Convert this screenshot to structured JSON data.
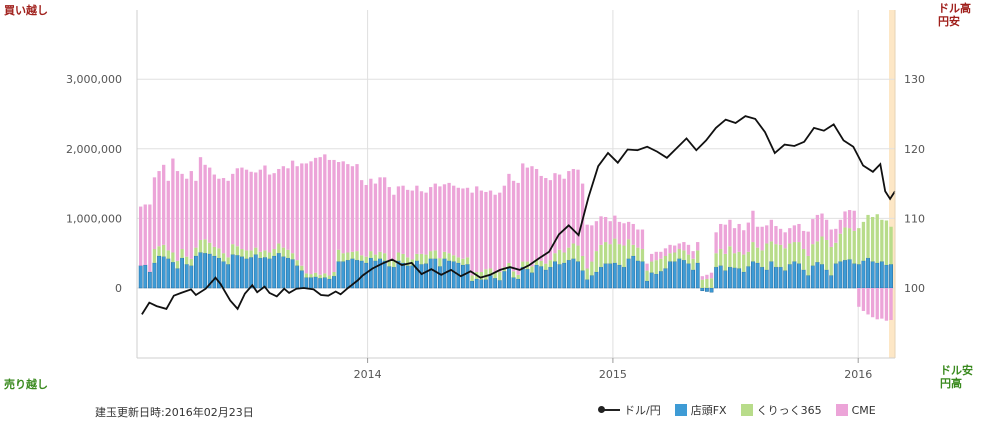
{
  "corner_labels": {
    "top_left": "買い越し",
    "bottom_left": "売り越し",
    "top_right_1": "ドル高",
    "top_right_2": "円安",
    "bottom_right_1": "ドル安",
    "bottom_right_2": "円高"
  },
  "footer": {
    "updated": "建玉更新日時:2016年02月23日"
  },
  "colors": {
    "fx": "#3e9bd5",
    "fx_edge": "#1f6aa0",
    "click365": "#b8dc8a",
    "cme": "#eca4d8",
    "line": "#111111",
    "grid": "#e0e0e0",
    "highlight": "#fde7c6"
  },
  "chart_data": {
    "type": "bar",
    "stacked": true,
    "title": "",
    "x_ticks": [
      "2014",
      "2015",
      "2016"
    ],
    "x_tick_positions": [
      2014.0,
      2015.0,
      2016.0
    ],
    "x_range": [
      2013.06,
      2016.15
    ],
    "y_left": {
      "range": [
        -1000000,
        4000000
      ],
      "ticks": [
        0,
        1000000,
        2000000,
        3000000
      ],
      "tick_labels": [
        "0",
        "1,000,000",
        "2,000,000",
        "3,000,000"
      ]
    },
    "y_right": {
      "range": [
        95,
        135
      ],
      "ticks": [
        100,
        110,
        120,
        130
      ],
      "tick_labels": [
        "100",
        "110",
        "120",
        "130"
      ]
    },
    "grid": true,
    "legend_position": "bottom-right",
    "series": [
      {
        "name": "ドル/円",
        "type": "line",
        "axis": "right",
        "key": "line",
        "points": [
          [
            2013.08,
            96.2
          ],
          [
            2013.11,
            97.9
          ],
          [
            2013.14,
            97.4
          ],
          [
            2013.18,
            97.0
          ],
          [
            2013.21,
            98.9
          ],
          [
            2013.24,
            99.3
          ],
          [
            2013.28,
            99.8
          ],
          [
            2013.3,
            99.0
          ],
          [
            2013.34,
            99.9
          ],
          [
            2013.38,
            101.5
          ],
          [
            2013.4,
            100.6
          ],
          [
            2013.44,
            98.2
          ],
          [
            2013.47,
            97.0
          ],
          [
            2013.5,
            99.2
          ],
          [
            2013.53,
            100.4
          ],
          [
            2013.55,
            99.4
          ],
          [
            2013.58,
            100.2
          ],
          [
            2013.6,
            99.3
          ],
          [
            2013.63,
            98.8
          ],
          [
            2013.66,
            99.9
          ],
          [
            2013.68,
            99.3
          ],
          [
            2013.71,
            99.9
          ],
          [
            2013.74,
            100.0
          ],
          [
            2013.78,
            99.8
          ],
          [
            2013.81,
            99.0
          ],
          [
            2013.84,
            98.9
          ],
          [
            2013.87,
            99.5
          ],
          [
            2013.89,
            99.1
          ],
          [
            2013.92,
            100.0
          ],
          [
            2013.96,
            101.1
          ],
          [
            2013.98,
            101.8
          ],
          [
            2014.02,
            102.8
          ],
          [
            2014.06,
            103.5
          ],
          [
            2014.1,
            104.1
          ],
          [
            2014.14,
            103.3
          ],
          [
            2014.18,
            103.6
          ],
          [
            2014.22,
            102.0
          ],
          [
            2014.26,
            102.7
          ],
          [
            2014.3,
            101.9
          ],
          [
            2014.34,
            102.6
          ],
          [
            2014.38,
            101.7
          ],
          [
            2014.42,
            102.4
          ],
          [
            2014.46,
            101.5
          ],
          [
            2014.5,
            101.9
          ],
          [
            2014.54,
            102.6
          ],
          [
            2014.58,
            103.0
          ],
          [
            2014.62,
            102.6
          ],
          [
            2014.66,
            103.3
          ],
          [
            2014.7,
            104.3
          ],
          [
            2014.74,
            105.2
          ],
          [
            2014.78,
            107.7
          ],
          [
            2014.82,
            109.0
          ],
          [
            2014.86,
            107.6
          ],
          [
            2014.9,
            113.0
          ],
          [
            2014.94,
            117.5
          ],
          [
            2014.98,
            119.4
          ],
          [
            2015.02,
            118.0
          ],
          [
            2015.06,
            119.9
          ],
          [
            2015.1,
            119.8
          ],
          [
            2015.14,
            120.3
          ],
          [
            2015.18,
            119.6
          ],
          [
            2015.22,
            118.7
          ],
          [
            2015.26,
            120.1
          ],
          [
            2015.3,
            121.5
          ],
          [
            2015.34,
            119.8
          ],
          [
            2015.38,
            121.2
          ],
          [
            2015.42,
            123.0
          ],
          [
            2015.46,
            124.2
          ],
          [
            2015.5,
            123.7
          ],
          [
            2015.54,
            124.7
          ],
          [
            2015.58,
            124.3
          ],
          [
            2015.62,
            122.4
          ],
          [
            2015.66,
            119.4
          ],
          [
            2015.7,
            120.6
          ],
          [
            2015.74,
            120.4
          ],
          [
            2015.78,
            121.0
          ],
          [
            2015.82,
            123.0
          ],
          [
            2015.86,
            122.6
          ],
          [
            2015.9,
            123.5
          ],
          [
            2015.94,
            121.2
          ],
          [
            2015.98,
            120.3
          ],
          [
            2016.02,
            117.6
          ],
          [
            2016.06,
            116.7
          ],
          [
            2016.09,
            117.8
          ],
          [
            2016.11,
            113.9
          ],
          [
            2016.13,
            112.8
          ],
          [
            2016.15,
            113.9
          ]
        ]
      },
      {
        "name": "店頭FX",
        "key": "fx",
        "values": [
          320000,
          330000,
          230000,
          360000,
          460000,
          450000,
          420000,
          370000,
          280000,
          430000,
          340000,
          320000,
          460000,
          510000,
          500000,
          490000,
          460000,
          430000,
          380000,
          340000,
          480000,
          470000,
          450000,
          420000,
          440000,
          480000,
          430000,
          440000,
          420000,
          460000,
          500000,
          450000,
          430000,
          410000,
          320000,
          250000,
          150000,
          150000,
          160000,
          140000,
          150000,
          130000,
          170000,
          380000,
          380000,
          400000,
          420000,
          400000,
          390000,
          360000,
          430000,
          390000,
          420000,
          390000,
          310000,
          300000,
          390000,
          360000,
          320000,
          320000,
          390000,
          340000,
          350000,
          420000,
          420000,
          310000,
          420000,
          390000,
          380000,
          360000,
          330000,
          340000,
          100000,
          130000,
          120000,
          120000,
          180000,
          140000,
          110000,
          240000,
          280000,
          150000,
          130000,
          300000,
          270000,
          220000,
          330000,
          310000,
          260000,
          300000,
          380000,
          340000,
          360000,
          400000,
          420000,
          380000,
          250000,
          120000,
          180000,
          230000,
          300000,
          350000,
          350000,
          360000,
          330000,
          300000,
          420000,
          460000,
          390000,
          380000,
          100000,
          220000,
          200000,
          240000,
          280000,
          380000,
          380000,
          420000,
          400000,
          350000,
          260000,
          360000,
          -40000,
          -50000,
          -60000,
          300000,
          320000,
          250000,
          300000,
          290000,
          280000,
          230000,
          310000,
          380000,
          360000,
          300000,
          260000,
          380000,
          300000,
          300000,
          250000,
          340000,
          380000,
          350000,
          260000,
          180000,
          320000,
          370000,
          340000,
          260000,
          180000,
          350000,
          380000,
          400000,
          410000,
          350000,
          340000,
          390000,
          430000,
          380000,
          360000,
          380000,
          330000,
          340000
        ]
      },
      {
        "name": "くりっく365",
        "key": "click365",
        "values": [
          0,
          0,
          0,
          200000,
          140000,
          170000,
          120000,
          140000,
          110000,
          130000,
          110000,
          100000,
          120000,
          180000,
          200000,
          160000,
          130000,
          140000,
          120000,
          100000,
          150000,
          130000,
          110000,
          120000,
          100000,
          100000,
          90000,
          100000,
          90000,
          100000,
          140000,
          130000,
          120000,
          90000,
          80000,
          70000,
          60000,
          50000,
          60000,
          50000,
          60000,
          50000,
          60000,
          170000,
          120000,
          110000,
          100000,
          130000,
          80000,
          90000,
          100000,
          90000,
          100000,
          110000,
          80000,
          90000,
          120000,
          130000,
          120000,
          90000,
          100000,
          150000,
          130000,
          110000,
          120000,
          120000,
          100000,
          110000,
          90000,
          80000,
          90000,
          100000,
          80000,
          100000,
          110000,
          150000,
          100000,
          90000,
          120000,
          60000,
          80000,
          90000,
          60000,
          80000,
          110000,
          90000,
          80000,
          80000,
          90000,
          100000,
          120000,
          210000,
          150000,
          180000,
          220000,
          230000,
          210000,
          160000,
          200000,
          300000,
          320000,
          310000,
          280000,
          350000,
          300000,
          310000,
          280000,
          160000,
          190000,
          180000,
          150000,
          160000,
          200000,
          180000,
          180000,
          120000,
          130000,
          140000,
          140000,
          130000,
          160000,
          180000,
          120000,
          130000,
          140000,
          200000,
          240000,
          240000,
          300000,
          210000,
          240000,
          250000,
          210000,
          280000,
          220000,
          240000,
          380000,
          290000,
          330000,
          320000,
          320000,
          300000,
          280000,
          310000,
          300000,
          280000,
          310000,
          300000,
          400000,
          430000,
          410000,
          300000,
          400000,
          470000,
          450000,
          470000,
          520000,
          560000,
          620000,
          640000,
          700000,
          600000,
          640000,
          540000,
          620000,
          660000
        ]
      },
      {
        "name": "CME",
        "key": "cme",
        "values": [
          850000,
          870000,
          970000,
          1030000,
          1080000,
          1150000,
          1000000,
          1350000,
          1290000,
          1080000,
          1120000,
          1260000,
          960000,
          1190000,
          1070000,
          1080000,
          1040000,
          1000000,
          1080000,
          1100000,
          1010000,
          1120000,
          1170000,
          1160000,
          1130000,
          1080000,
          1180000,
          1220000,
          1120000,
          1090000,
          1070000,
          1170000,
          1170000,
          1330000,
          1350000,
          1470000,
          1580000,
          1620000,
          1650000,
          1690000,
          1710000,
          1660000,
          1610000,
          1260000,
          1320000,
          1270000,
          1230000,
          1250000,
          1080000,
          1030000,
          1040000,
          1020000,
          1070000,
          1090000,
          1060000,
          950000,
          950000,
          980000,
          970000,
          990000,
          980000,
          900000,
          890000,
          920000,
          960000,
          1030000,
          970000,
          1010000,
          1000000,
          1000000,
          1010000,
          1000000,
          1190000,
          1230000,
          1170000,
          1110000,
          1120000,
          1110000,
          1140000,
          1170000,
          1280000,
          1300000,
          1320000,
          1410000,
          1350000,
          1440000,
          1300000,
          1220000,
          1230000,
          1150000,
          1150000,
          1080000,
          1060000,
          1100000,
          1070000,
          1090000,
          1040000,
          630000,
          520000,
          430000,
          410000,
          360000,
          330000,
          330000,
          320000,
          320000,
          250000,
          300000,
          260000,
          280000,
          100000,
          110000,
          120000,
          100000,
          110000,
          120000,
          100000,
          80000,
          120000,
          140000,
          110000,
          120000,
          50000,
          60000,
          80000,
          300000,
          360000,
          420000,
          380000,
          360000,
          400000,
          350000,
          420000,
          450000,
          300000,
          340000,
          260000,
          310000,
          260000,
          230000,
          230000,
          220000,
          240000,
          260000,
          260000,
          350000,
          360000,
          380000,
          330000,
          290000,
          250000,
          200000,
          200000,
          230000,
          260000,
          290000,
          -270000,
          -330000,
          -380000,
          -420000,
          -450000,
          -440000,
          -470000,
          -460000,
          -480000,
          -500000
        ]
      }
    ]
  }
}
